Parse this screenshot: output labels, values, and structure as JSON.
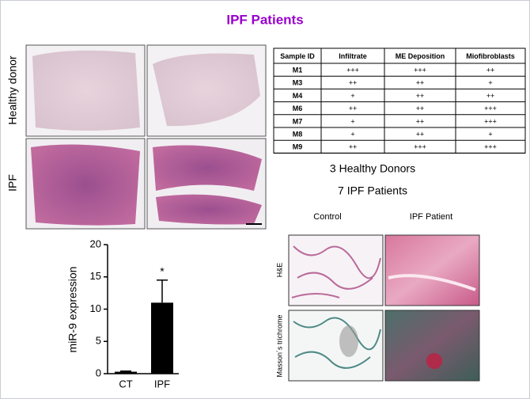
{
  "title": "IPF Patients",
  "histology": {
    "row_labels": [
      "Healthy donor",
      "IPF"
    ]
  },
  "table": {
    "columns": [
      "Sample ID",
      "Infiltrate",
      "ME Deposition",
      "Miofibroblasts"
    ],
    "rows": [
      [
        "M1",
        "+++",
        "+++",
        "++"
      ],
      [
        "M3",
        "++",
        "++",
        "+"
      ],
      [
        "M4",
        "+",
        "++",
        "++"
      ],
      [
        "M6",
        "++",
        "++",
        "+++"
      ],
      [
        "M7",
        "+",
        "++",
        "+++"
      ],
      [
        "M8",
        "+",
        "++",
        "+"
      ],
      [
        "M9",
        "++",
        "+++",
        "+++"
      ]
    ]
  },
  "summary": [
    "3 Healthy Donors",
    "7 IPF Patients"
  ],
  "bar_chart": {
    "type": "bar",
    "ylabel": "miR-9 expression",
    "categories": [
      "CT",
      "IPF"
    ],
    "values": [
      0.3,
      11
    ],
    "errors": [
      0.1,
      3.5
    ],
    "color": "#000000",
    "ylim": [
      0,
      20
    ],
    "yticks": [
      0,
      5,
      10,
      15,
      20
    ],
    "annotation": "*"
  },
  "staining": {
    "columns": [
      "Control",
      "IPF Patient"
    ],
    "rows": [
      "H&E",
      "Masson´s trichrome"
    ]
  }
}
